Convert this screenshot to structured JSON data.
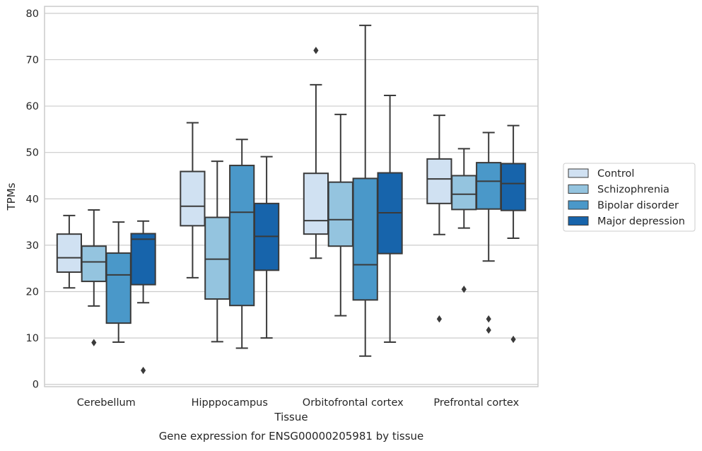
{
  "chart_data": {
    "type": "boxplot",
    "title": "",
    "caption": "Gene expression for ENSG00000205981 by tissue",
    "xlabel": "Tissue",
    "ylabel": "TPMs",
    "ylim": [
      -0.5,
      81.5
    ],
    "yticks": [
      0,
      10,
      20,
      30,
      40,
      50,
      60,
      70,
      80
    ],
    "grid": true,
    "legend_position": "right",
    "categories": [
      "Cerebellum",
      "Hipppocampus",
      "Orbitofrontal cortex",
      "Prefrontal cortex"
    ],
    "series": [
      {
        "name": "Control",
        "color": "#d0e1f2",
        "boxes": [
          {
            "whislo": 20.8,
            "q1": 24.2,
            "med": 27.3,
            "q3": 32.4,
            "whishi": 36.4,
            "fliers": []
          },
          {
            "whislo": 23.0,
            "q1": 34.2,
            "med": 38.4,
            "q3": 45.9,
            "whishi": 56.4,
            "fliers": []
          },
          {
            "whislo": 27.2,
            "q1": 32.4,
            "med": 35.3,
            "q3": 45.5,
            "whishi": 64.6,
            "fliers": [
              72.0
            ]
          },
          {
            "whislo": 32.3,
            "q1": 39.0,
            "med": 44.3,
            "q3": 48.6,
            "whishi": 58.0,
            "fliers": [
              14.1
            ]
          }
        ]
      },
      {
        "name": "Schizophrenia",
        "color": "#94c4df",
        "boxes": [
          {
            "whislo": 16.9,
            "q1": 22.2,
            "med": 26.4,
            "q3": 29.8,
            "whishi": 37.6,
            "fliers": [
              9.0
            ]
          },
          {
            "whislo": 9.2,
            "q1": 18.4,
            "med": 27.0,
            "q3": 36.0,
            "whishi": 48.1,
            "fliers": []
          },
          {
            "whislo": 14.8,
            "q1": 29.8,
            "med": 35.5,
            "q3": 43.6,
            "whishi": 58.2,
            "fliers": []
          },
          {
            "whislo": 33.7,
            "q1": 37.7,
            "med": 41.0,
            "q3": 45.0,
            "whishi": 50.8,
            "fliers": [
              20.5
            ]
          }
        ]
      },
      {
        "name": "Bipolar disorder",
        "color": "#4a98c9",
        "boxes": [
          {
            "whislo": 9.1,
            "q1": 13.2,
            "med": 23.6,
            "q3": 28.3,
            "whishi": 35.0,
            "fliers": []
          },
          {
            "whislo": 7.8,
            "q1": 17.0,
            "med": 37.1,
            "q3": 47.2,
            "whishi": 52.8,
            "fliers": []
          },
          {
            "whislo": 6.1,
            "q1": 18.2,
            "med": 25.8,
            "q3": 44.4,
            "whishi": 77.4,
            "fliers": []
          },
          {
            "whislo": 26.6,
            "q1": 37.8,
            "med": 43.8,
            "q3": 47.8,
            "whishi": 54.3,
            "fliers": [
              14.1,
              11.7
            ]
          }
        ]
      },
      {
        "name": "Major depression",
        "color": "#1764ab",
        "boxes": [
          {
            "whislo": 17.6,
            "q1": 21.5,
            "med": 31.3,
            "q3": 32.5,
            "whishi": 35.2,
            "fliers": [
              3.0
            ]
          },
          {
            "whislo": 10.0,
            "q1": 24.6,
            "med": 31.9,
            "q3": 39.0,
            "whishi": 49.1,
            "fliers": []
          },
          {
            "whislo": 9.1,
            "q1": 28.2,
            "med": 37.0,
            "q3": 45.6,
            "whishi": 62.3,
            "fliers": []
          },
          {
            "whislo": 31.5,
            "q1": 37.5,
            "med": 43.3,
            "q3": 47.6,
            "whishi": 55.8,
            "fliers": [
              9.7
            ]
          }
        ]
      }
    ]
  }
}
